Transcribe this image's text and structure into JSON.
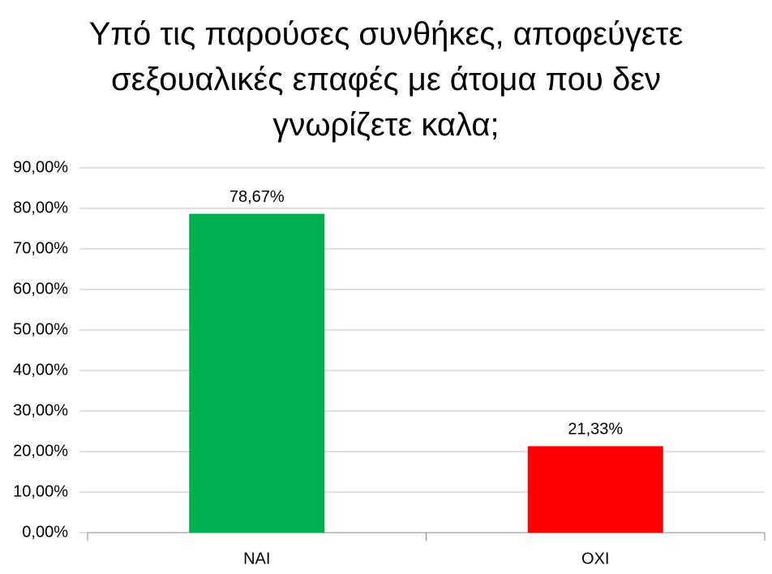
{
  "chart_data": {
    "type": "bar",
    "title": "Υπό τις παρούσες συνθήκες, αποφεύγετε σεξουαλικές επαφές με άτομα που δεν γνωρίζετε καλα;",
    "categories": [
      "NAI",
      "OXI"
    ],
    "values": [
      78.67,
      21.33
    ],
    "value_labels": [
      "78,67%",
      "21,33%"
    ],
    "colors": [
      "#00b050",
      "#ff0000"
    ],
    "ylim": [
      0,
      90
    ],
    "yticks": [
      {
        "value": 0,
        "label": "0,00%"
      },
      {
        "value": 10,
        "label": "10,00%"
      },
      {
        "value": 20,
        "label": "20,00%"
      },
      {
        "value": 30,
        "label": "30,00%"
      },
      {
        "value": 40,
        "label": "40,00%"
      },
      {
        "value": 50,
        "label": "50,00%"
      },
      {
        "value": 60,
        "label": "60,00%"
      },
      {
        "value": 70,
        "label": "70,00%"
      },
      {
        "value": 80,
        "label": "80,00%"
      },
      {
        "value": 90,
        "label": "90,00%"
      }
    ],
    "grid": true
  }
}
